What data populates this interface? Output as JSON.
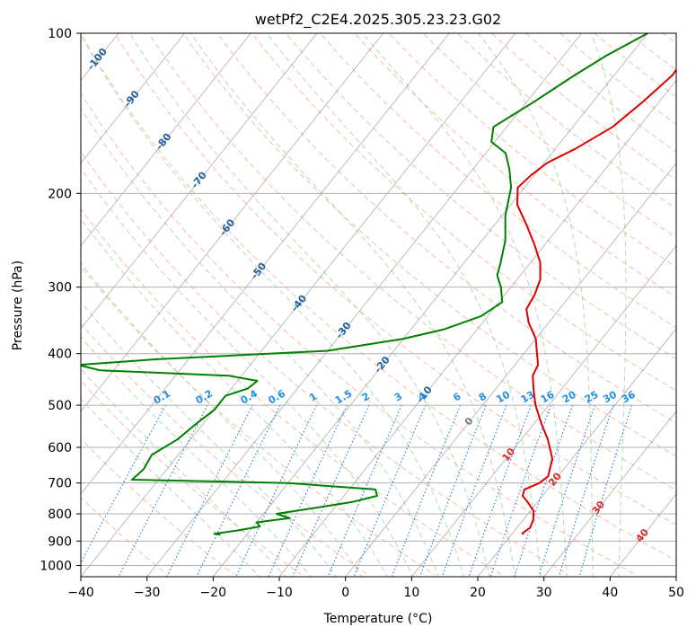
{
  "chart_data": {
    "type": "line",
    "title": "wetPf2_C2E4.2025.305.23.23.G02",
    "xlabel": "Temperature (°C)",
    "ylabel": "Pressure (hPa)",
    "xlim": [
      -40,
      50
    ],
    "ylim": [
      1050,
      100
    ],
    "y_scale": "log",
    "x_ticks": [
      "−40",
      "−30",
      "−20",
      "−10",
      "0",
      "10",
      "20",
      "30",
      "40",
      "50"
    ],
    "x_tick_values": [
      -40,
      -30,
      -20,
      -10,
      0,
      10,
      20,
      30,
      40,
      50
    ],
    "y_ticks": [
      "100",
      "200",
      "300",
      "400",
      "500",
      "600",
      "700",
      "800",
      "900",
      "1000"
    ],
    "y_tick_values": [
      100,
      200,
      300,
      400,
      500,
      600,
      700,
      800,
      900,
      1000
    ],
    "grid": true,
    "colors": {
      "temperature": "#e00000",
      "dewpoint": "#008000",
      "dry_adiabat": "#f4a58a",
      "moist_adiabat": "#8fcf8f",
      "mixing_ratio": "#1f77d4",
      "isotherm": "#8a8a8a",
      "frame": "#000000"
    },
    "isotherm_labels": [
      {
        "text": "-100",
        "t": -100,
        "p": 112
      },
      {
        "text": "-90",
        "t": -90,
        "p": 133
      },
      {
        "text": "-80",
        "t": -80,
        "p": 160
      },
      {
        "text": "-70",
        "t": -70,
        "p": 189
      },
      {
        "text": "-60",
        "t": -60,
        "p": 232
      },
      {
        "text": "-50",
        "t": -50,
        "p": 280
      },
      {
        "text": "-40",
        "t": -40,
        "p": 322
      },
      {
        "text": "-30",
        "t": -30,
        "p": 362
      },
      {
        "text": "-20",
        "t": -20,
        "p": 420
      },
      {
        "text": "-10",
        "t": -10,
        "p": 478
      },
      {
        "text": "0",
        "t": 0,
        "p": 537
      },
      {
        "text": "10",
        "t": 10,
        "p": 620
      },
      {
        "text": "20",
        "t": 20,
        "p": 690
      },
      {
        "text": "30",
        "t": 30,
        "p": 780
      },
      {
        "text": "40",
        "t": 40,
        "p": 880
      }
    ],
    "mixing_ratio_labels": [
      "0.1",
      "0.2",
      "0.4",
      "0.6",
      "1",
      "1.5",
      "2",
      "3",
      "4",
      "6",
      "8",
      "10",
      "13",
      "16",
      "20",
      "25",
      "30",
      "36"
    ],
    "series": [
      {
        "role": "temperature",
        "points": [
          [
            -13.5,
            100
          ],
          [
            -11.5,
            110
          ],
          [
            -11.2,
            120
          ],
          [
            -12.5,
            135
          ],
          [
            -14,
            150
          ],
          [
            -17,
            165
          ],
          [
            -19.5,
            175
          ],
          [
            -20.5,
            185
          ],
          [
            -21,
            195
          ],
          [
            -19,
            210
          ],
          [
            -15,
            230
          ],
          [
            -11.5,
            250
          ],
          [
            -8.5,
            270
          ],
          [
            -6.5,
            290
          ],
          [
            -5.5,
            310
          ],
          [
            -5,
            330
          ],
          [
            -3,
            350
          ],
          [
            0,
            375
          ],
          [
            2,
            400
          ],
          [
            3.5,
            420
          ],
          [
            4,
            440
          ],
          [
            6,
            470
          ],
          [
            8,
            500
          ],
          [
            11,
            540
          ],
          [
            14,
            580
          ],
          [
            17,
            630
          ],
          [
            18.5,
            680
          ],
          [
            18,
            700
          ],
          [
            16.5,
            720
          ],
          [
            17,
            740
          ],
          [
            18.5,
            760
          ],
          [
            20.5,
            790
          ],
          [
            21.5,
            820
          ],
          [
            22,
            850
          ],
          [
            21.5,
            870
          ],
          [
            21.8,
            875
          ]
        ]
      },
      {
        "role": "dewpoint",
        "points": [
          [
            -20,
            100
          ],
          [
            -23.5,
            110
          ],
          [
            -26,
            120
          ],
          [
            -29,
            135
          ],
          [
            -32,
            150
          ],
          [
            -30.5,
            160
          ],
          [
            -27,
            168
          ],
          [
            -24.5,
            180
          ],
          [
            -22,
            195
          ],
          [
            -19.5,
            220
          ],
          [
            -16.5,
            245
          ],
          [
            -14.5,
            270
          ],
          [
            -13.5,
            285
          ],
          [
            -11.5,
            300
          ],
          [
            -9.5,
            320
          ],
          [
            -11,
            340
          ],
          [
            -15,
            360
          ],
          [
            -20,
            375
          ],
          [
            -30,
            395
          ],
          [
            -55,
            410
          ],
          [
            -66,
            420
          ],
          [
            -62,
            430
          ],
          [
            -42,
            440
          ],
          [
            -37,
            450
          ],
          [
            -37.5,
            465
          ],
          [
            -40,
            480
          ],
          [
            -40,
            510
          ],
          [
            -41,
            540
          ],
          [
            -42,
            580
          ],
          [
            -44,
            620
          ],
          [
            -43.5,
            660
          ],
          [
            -44,
            690
          ],
          [
            -20,
            700
          ],
          [
            -6,
            720
          ],
          [
            -5,
            740
          ],
          [
            -8,
            760
          ],
          [
            -13,
            780
          ],
          [
            -18,
            800
          ],
          [
            -15.5,
            815
          ],
          [
            -20,
            830
          ],
          [
            -19,
            845
          ],
          [
            -22,
            860
          ],
          [
            -25,
            872
          ],
          [
            -24,
            875
          ]
        ]
      }
    ]
  }
}
